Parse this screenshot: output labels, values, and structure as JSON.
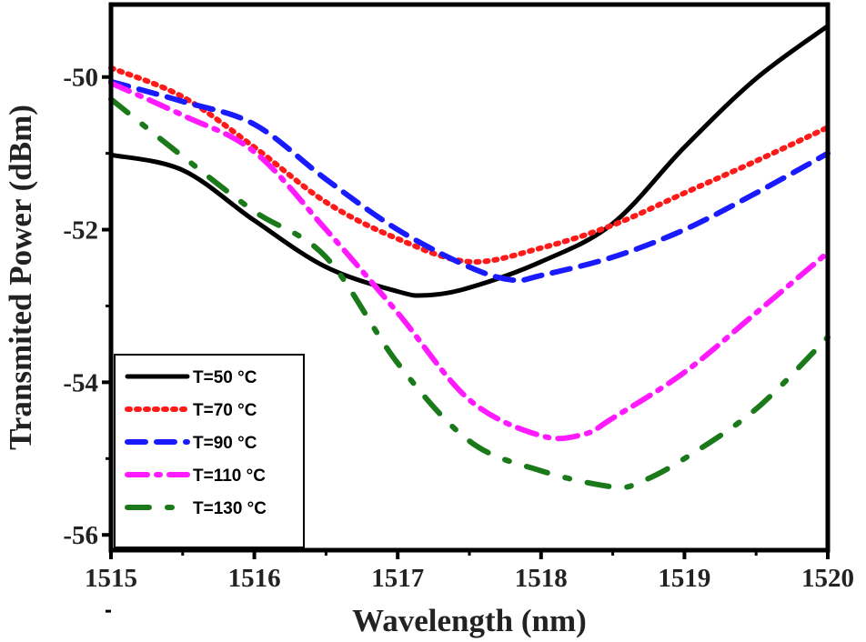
{
  "chart_data": {
    "type": "line",
    "title": "",
    "xlabel": "Wavelength (nm)",
    "ylabel": "Transmited Power (dBm)",
    "xlim": [
      1515,
      1520
    ],
    "ylim": [
      -56.2,
      -49.05
    ],
    "xticks": [
      1515,
      1516,
      1517,
      1518,
      1519,
      1520
    ],
    "yticks": [
      -50,
      -52,
      -54,
      -56
    ],
    "grid": false,
    "legend_position": "bottom-left",
    "series": [
      {
        "name": "T=50 °C",
        "color": "#000000",
        "dash": "solid",
        "x": [
          1515,
          1515.5,
          1516,
          1516.5,
          1517,
          1517.2,
          1517.5,
          1518,
          1518.5,
          1519,
          1519.5,
          1520
        ],
        "y": [
          -51.02,
          -51.22,
          -51.88,
          -52.49,
          -52.81,
          -52.86,
          -52.76,
          -52.42,
          -51.92,
          -50.92,
          -50.02,
          -49.33
        ]
      },
      {
        "name": "T=70 °C",
        "color": "#ff1a1a",
        "dash": "dot",
        "x": [
          1515,
          1515.5,
          1516,
          1516.5,
          1517,
          1517.5,
          1518,
          1518.5,
          1519,
          1519.5,
          1520
        ],
        "y": [
          -49.88,
          -50.26,
          -50.92,
          -51.64,
          -52.12,
          -52.42,
          -52.24,
          -51.94,
          -51.52,
          -51.1,
          -50.66
        ]
      },
      {
        "name": "T=90 °C",
        "color": "#1a1aff",
        "dash": "dash",
        "x": [
          1515,
          1515.5,
          1516,
          1516.5,
          1517,
          1517.5,
          1517.8,
          1518,
          1518.5,
          1519,
          1519.5,
          1520
        ],
        "y": [
          -50.06,
          -50.32,
          -50.62,
          -51.34,
          -52.0,
          -52.49,
          -52.66,
          -52.6,
          -52.36,
          -52.0,
          -51.52,
          -51.0
        ]
      },
      {
        "name": "T=110 °C",
        "color": "#ff1aff",
        "dash": "dashdot",
        "x": [
          1515,
          1515.5,
          1516,
          1516.5,
          1517,
          1517.5,
          1518,
          1518.3,
          1518.5,
          1519,
          1519.5,
          1520
        ],
        "y": [
          -50.08,
          -50.5,
          -50.98,
          -52.0,
          -53.09,
          -54.23,
          -54.7,
          -54.68,
          -54.47,
          -53.87,
          -53.09,
          -52.3
        ]
      },
      {
        "name": "T=130 °C",
        "color": "#1a7a1a",
        "dash": "dashdotsparse",
        "x": [
          1515,
          1515.5,
          1516,
          1516.5,
          1517,
          1517.5,
          1518,
          1518.5,
          1518.7,
          1519,
          1519.5,
          1520
        ],
        "y": [
          -50.29,
          -51.04,
          -51.76,
          -52.36,
          -53.75,
          -54.77,
          -55.16,
          -55.37,
          -55.3,
          -55.0,
          -54.35,
          -53.41
        ]
      }
    ]
  }
}
